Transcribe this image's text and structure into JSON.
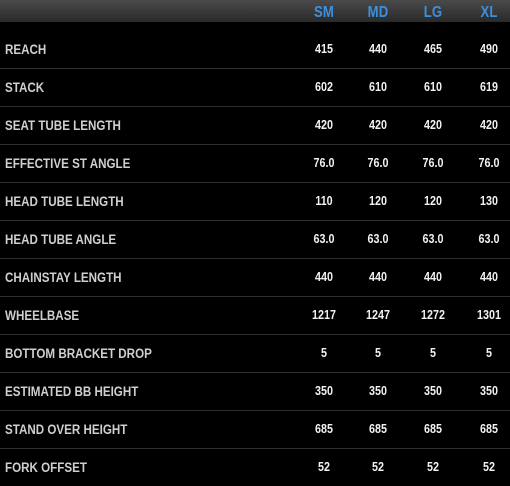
{
  "colors": {
    "background": "#000000",
    "size_header": "#3d8fdf",
    "label_text": "#cfcfcf",
    "value_text": "#f2f2f2",
    "row_divider": "#2e2e2e"
  },
  "sizes": [
    "SM",
    "MD",
    "LG",
    "XL"
  ],
  "rows": [
    {
      "label": "REACH",
      "values": [
        "415",
        "440",
        "465",
        "490"
      ]
    },
    {
      "label": "STACK",
      "values": [
        "602",
        "610",
        "610",
        "619"
      ]
    },
    {
      "label": "SEAT TUBE LENGTH",
      "values": [
        "420",
        "420",
        "420",
        "420"
      ]
    },
    {
      "label": "EFFECTIVE ST ANGLE",
      "values": [
        "76.0",
        "76.0",
        "76.0",
        "76.0"
      ]
    },
    {
      "label": "HEAD TUBE LENGTH",
      "values": [
        "110",
        "120",
        "120",
        "130"
      ]
    },
    {
      "label": "HEAD TUBE ANGLE",
      "values": [
        "63.0",
        "63.0",
        "63.0",
        "63.0"
      ]
    },
    {
      "label": "CHAINSTAY LENGTH",
      "values": [
        "440",
        "440",
        "440",
        "440"
      ]
    },
    {
      "label": "WHEELBASE",
      "values": [
        "1217",
        "1247",
        "1272",
        "1301"
      ]
    },
    {
      "label": "BOTTOM BRACKET DROP",
      "values": [
        "5",
        "5",
        "5",
        "5"
      ]
    },
    {
      "label": "ESTIMATED BB HEIGHT",
      "values": [
        "350",
        "350",
        "350",
        "350"
      ]
    },
    {
      "label": "STAND OVER HEIGHT",
      "values": [
        "685",
        "685",
        "685",
        "685"
      ]
    },
    {
      "label": "FORK OFFSET",
      "values": [
        "52",
        "52",
        "52",
        "52"
      ]
    }
  ]
}
